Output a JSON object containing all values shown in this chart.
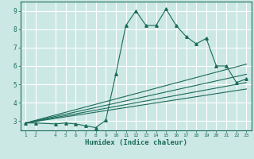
{
  "xlabel": "Humidex (Indice chaleur)",
  "xlim": [
    0.5,
    23.5
  ],
  "ylim": [
    2.5,
    9.5
  ],
  "yticks": [
    3,
    4,
    5,
    6,
    7,
    8,
    9
  ],
  "xticks": [
    1,
    2,
    4,
    5,
    6,
    7,
    8,
    9,
    10,
    11,
    12,
    13,
    14,
    15,
    16,
    17,
    18,
    19,
    20,
    21,
    22,
    23
  ],
  "bg_color": "#cce8e4",
  "grid_color": "#ffffff",
  "line_color": "#1a6b5a",
  "series": {
    "main": [
      [
        1,
        2.9
      ],
      [
        2,
        2.9
      ],
      [
        4,
        2.85
      ],
      [
        5,
        2.9
      ],
      [
        6,
        2.85
      ],
      [
        7,
        2.75
      ],
      [
        8,
        2.65
      ],
      [
        9,
        3.05
      ],
      [
        10,
        5.55
      ],
      [
        11,
        8.2
      ],
      [
        12,
        9.0
      ],
      [
        13,
        8.2
      ],
      [
        14,
        8.2
      ],
      [
        15,
        9.1
      ],
      [
        16,
        8.2
      ],
      [
        17,
        7.6
      ],
      [
        18,
        7.2
      ],
      [
        19,
        7.5
      ],
      [
        20,
        6.0
      ],
      [
        21,
        6.0
      ],
      [
        22,
        5.1
      ],
      [
        23,
        5.3
      ]
    ],
    "line1": [
      [
        1,
        2.9
      ],
      [
        23,
        6.1
      ]
    ],
    "line2": [
      [
        1,
        2.9
      ],
      [
        23,
        5.55
      ]
    ],
    "line3": [
      [
        1,
        2.9
      ],
      [
        23,
        5.1
      ]
    ],
    "line4": [
      [
        1,
        2.9
      ],
      [
        23,
        4.75
      ]
    ]
  }
}
